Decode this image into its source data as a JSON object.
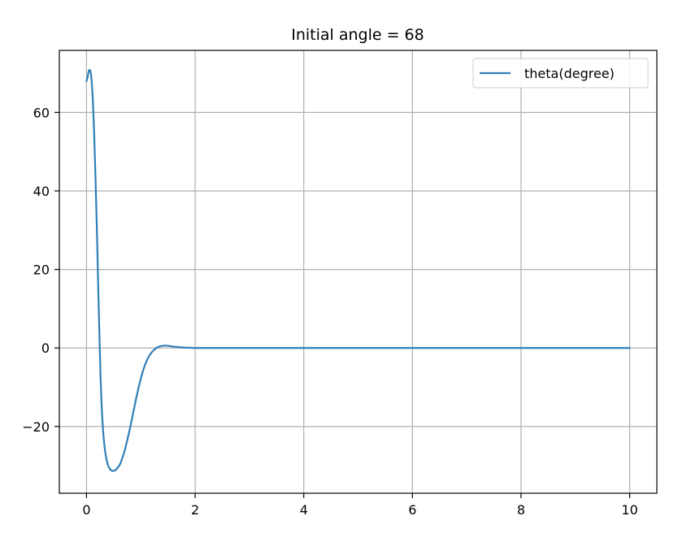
{
  "chart_data": {
    "type": "line",
    "title": "Initial angle = 68",
    "xlabel": "",
    "ylabel": "",
    "xlim": [
      -0.5,
      10.5
    ],
    "ylim": [
      -37,
      75.8
    ],
    "xticks": [
      0,
      2,
      4,
      6,
      8,
      10
    ],
    "xtick_labels": [
      "0",
      "2",
      "4",
      "6",
      "8",
      "10"
    ],
    "yticks": [
      -20,
      0,
      20,
      40,
      60
    ],
    "ytick_labels": [
      "−20",
      "0",
      "20",
      "40",
      "60"
    ],
    "grid": true,
    "legend_position": "top-right",
    "series": [
      {
        "name": "theta(degree)",
        "color": "#2f7fb9",
        "x": [
          0,
          0.02,
          0.04,
          0.06,
          0.08,
          0.1,
          0.12,
          0.14,
          0.16,
          0.18,
          0.2,
          0.22,
          0.24,
          0.26,
          0.28,
          0.3,
          0.32,
          0.34,
          0.36,
          0.38,
          0.4,
          0.42,
          0.44,
          0.46,
          0.48,
          0.5,
          0.52,
          0.54,
          0.56,
          0.58,
          0.6,
          0.62,
          0.64,
          0.66,
          0.7,
          0.75,
          0.8,
          0.85,
          0.9,
          0.95,
          1.0,
          1.05,
          1.1,
          1.15,
          1.2,
          1.25,
          1.3,
          1.35,
          1.4,
          1.45,
          1.5,
          1.55,
          1.6,
          1.7,
          1.8,
          1.9,
          2.0,
          2.2,
          2.5,
          3.0,
          4.0,
          5.0,
          6.0,
          7.0,
          8.0,
          9.0,
          10.0
        ],
        "y": [
          68,
          69,
          70.5,
          70.8,
          70,
          67,
          62,
          55,
          46,
          36,
          25,
          13,
          2,
          -8,
          -15,
          -20,
          -23.5,
          -26,
          -27.8,
          -29,
          -30,
          -30.6,
          -31,
          -31.2,
          -31.3,
          -31.3,
          -31.2,
          -31,
          -30.7,
          -30.4,
          -30,
          -29.5,
          -28.8,
          -28,
          -26.3,
          -23.5,
          -20.5,
          -17.2,
          -13.8,
          -10.6,
          -7.8,
          -5.4,
          -3.5,
          -2.1,
          -1.1,
          -0.4,
          0.1,
          0.4,
          0.55,
          0.6,
          0.55,
          0.45,
          0.35,
          0.2,
          0.1,
          0.05,
          0,
          0,
          0,
          0,
          0,
          0,
          0,
          0,
          0,
          0,
          0
        ]
      }
    ]
  }
}
